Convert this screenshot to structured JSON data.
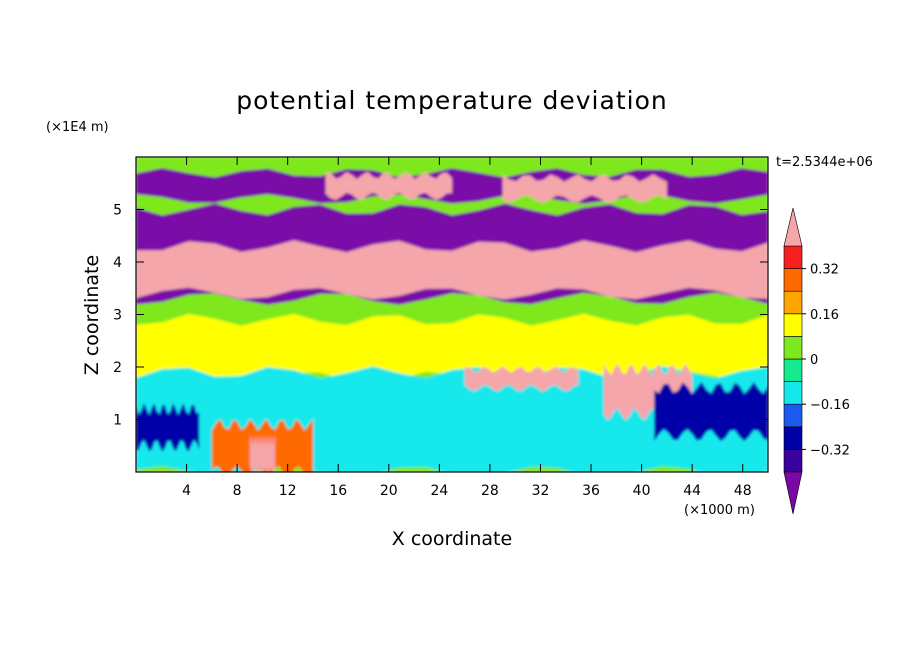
{
  "chart_data": {
    "type": "heatmap",
    "title": "potential temperature deviation",
    "xlabel": "X coordinate",
    "ylabel": "Z coordinate",
    "x_scale_label": "(×1000 m)",
    "y_scale_label": "(×1E4 m)",
    "time_label": "t=2.5344e+06",
    "xlim": [
      0,
      50
    ],
    "ylim": [
      0,
      6
    ],
    "x_ticks": [
      4,
      8,
      12,
      16,
      20,
      24,
      28,
      32,
      36,
      40,
      44,
      48
    ],
    "x_tick_labels": [
      "4",
      "8",
      "12",
      "16",
      "20",
      "24",
      "28",
      "32",
      "36",
      "40",
      "44",
      "48"
    ],
    "y_ticks": [
      1,
      2,
      3,
      4,
      5
    ],
    "y_tick_labels": [
      "1",
      "2",
      "3",
      "4",
      "5"
    ],
    "colorbar": {
      "levels": [
        -0.4,
        -0.32,
        -0.24,
        -0.16,
        -0.08,
        0,
        0.08,
        0.16,
        0.24,
        0.32,
        0.4
      ],
      "labels": [
        "0.32",
        "0.16",
        "0",
        "−0.16",
        "−0.32"
      ],
      "label_values": [
        0.32,
        0.16,
        0,
        -0.16,
        -0.32
      ],
      "colors": [
        "#7a07a8",
        "#3b009e",
        "#0000a8",
        "#1c5bf0",
        "#14e8ec",
        "#15ea8e",
        "#7ee81e",
        "#ffff00",
        "#ffa500",
        "#ff6a00",
        "#f82020",
        "#f4a6aa"
      ]
    },
    "regions": [
      {
        "level": 0.0,
        "x": [
          0,
          50
        ],
        "z": [
          0,
          6
        ]
      },
      {
        "level": 0.1,
        "x": [
          0,
          50
        ],
        "z": [
          1.8,
          2.9
        ]
      },
      {
        "level": -0.1,
        "x": [
          0,
          50
        ],
        "z": [
          0,
          1.9
        ]
      },
      {
        "level": -0.45,
        "x": [
          0,
          50
        ],
        "z": [
          5.2,
          5.7
        ]
      },
      {
        "level": 0.45,
        "x": [
          15,
          25
        ],
        "z": [
          5.25,
          5.65
        ]
      },
      {
        "level": 0.45,
        "x": [
          29,
          42
        ],
        "z": [
          5.2,
          5.6
        ]
      },
      {
        "level": -0.45,
        "x": [
          0,
          50
        ],
        "z": [
          3.3,
          5.0
        ]
      },
      {
        "level": 0.45,
        "x": [
          0,
          50
        ],
        "z": [
          3.4,
          4.3
        ]
      },
      {
        "level": 0.3,
        "x": [
          6,
          14
        ],
        "z": [
          0,
          0.9
        ]
      },
      {
        "level": 0.45,
        "x": [
          9,
          11
        ],
        "z": [
          0,
          0.6
        ]
      },
      {
        "level": 0.45,
        "x": [
          26,
          35
        ],
        "z": [
          1.6,
          1.95
        ]
      },
      {
        "level": 0.45,
        "x": [
          37,
          44
        ],
        "z": [
          1.1,
          1.95
        ]
      },
      {
        "level": -0.3,
        "x": [
          0,
          5
        ],
        "z": [
          0.5,
          1.2
        ]
      },
      {
        "level": -0.3,
        "x": [
          41,
          50
        ],
        "z": [
          0.7,
          1.6
        ]
      }
    ]
  }
}
